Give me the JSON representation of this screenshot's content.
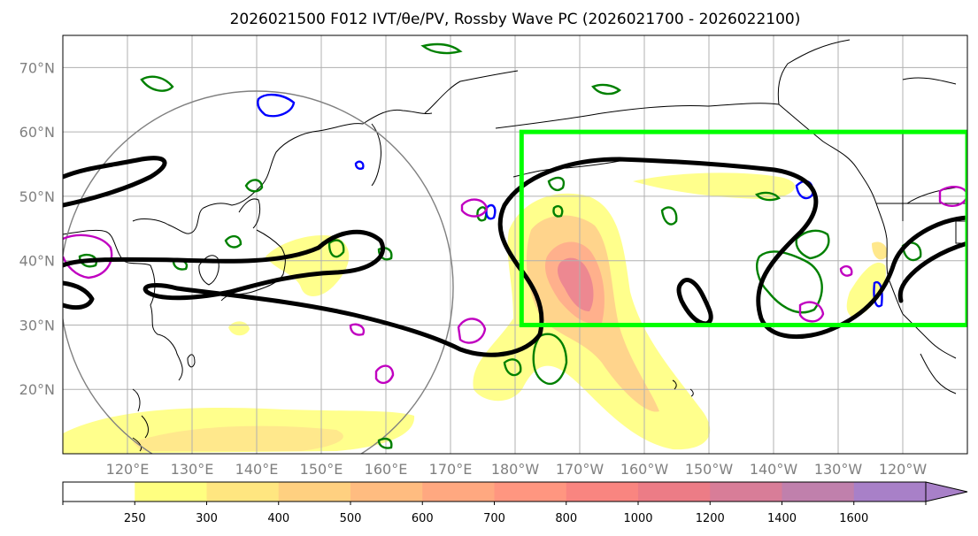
{
  "title": "2026021500 F012 IVT/θe/PV, Rossby Wave PC (2026021700 - 2026022100)",
  "map": {
    "lat_range": [
      10,
      75
    ],
    "lon_range_east": [
      110,
      250
    ],
    "lat_labels": [
      {
        "lat": 70,
        "text": "70°N"
      },
      {
        "lat": 60,
        "text": "60°N"
      },
      {
        "lat": 50,
        "text": "50°N"
      },
      {
        "lat": 40,
        "text": "40°N"
      },
      {
        "lat": 30,
        "text": "30°N"
      },
      {
        "lat": 20,
        "text": "20°N"
      }
    ],
    "lon_labels": [
      {
        "lon": 120,
        "text": "120°E"
      },
      {
        "lon": 130,
        "text": "130°E"
      },
      {
        "lon": 140,
        "text": "140°E"
      },
      {
        "lon": 150,
        "text": "150°E"
      },
      {
        "lon": 160,
        "text": "160°E"
      },
      {
        "lon": 170,
        "text": "170°E"
      },
      {
        "lon": 180,
        "text": "180°W"
      },
      {
        "lon": 190,
        "text": "170°W"
      },
      {
        "lon": 200,
        "text": "160°W"
      },
      {
        "lon": 210,
        "text": "150°W"
      },
      {
        "lon": 220,
        "text": "140°W"
      },
      {
        "lon": 230,
        "text": "130°W"
      },
      {
        "lon": 240,
        "text": "120°W"
      }
    ],
    "highlight_box": {
      "lat_min": 30,
      "lat_max": 60,
      "lon_min": 181,
      "lon_max": 250,
      "color": "#00ff00"
    },
    "colors": {
      "coast": "#000000",
      "grid": "#b0b0b0",
      "wave_contour": "#000000",
      "theta_e": "#008000",
      "pv_blue": "#0000ff",
      "pv_magenta": "#c000c0",
      "circle": "#808080"
    }
  },
  "colorbar": {
    "labels": [
      "250",
      "300",
      "400",
      "500",
      "600",
      "700",
      "800",
      "1000",
      "1200",
      "1400",
      "1600"
    ],
    "colors": [
      "#ffffff",
      "#ffff80",
      "#ffe680",
      "#ffd080",
      "#ffbc80",
      "#ffa880",
      "#ff9680",
      "#f98580",
      "#ec7c86",
      "#d87d98",
      "#c080ac",
      "#a880c8"
    ]
  }
}
